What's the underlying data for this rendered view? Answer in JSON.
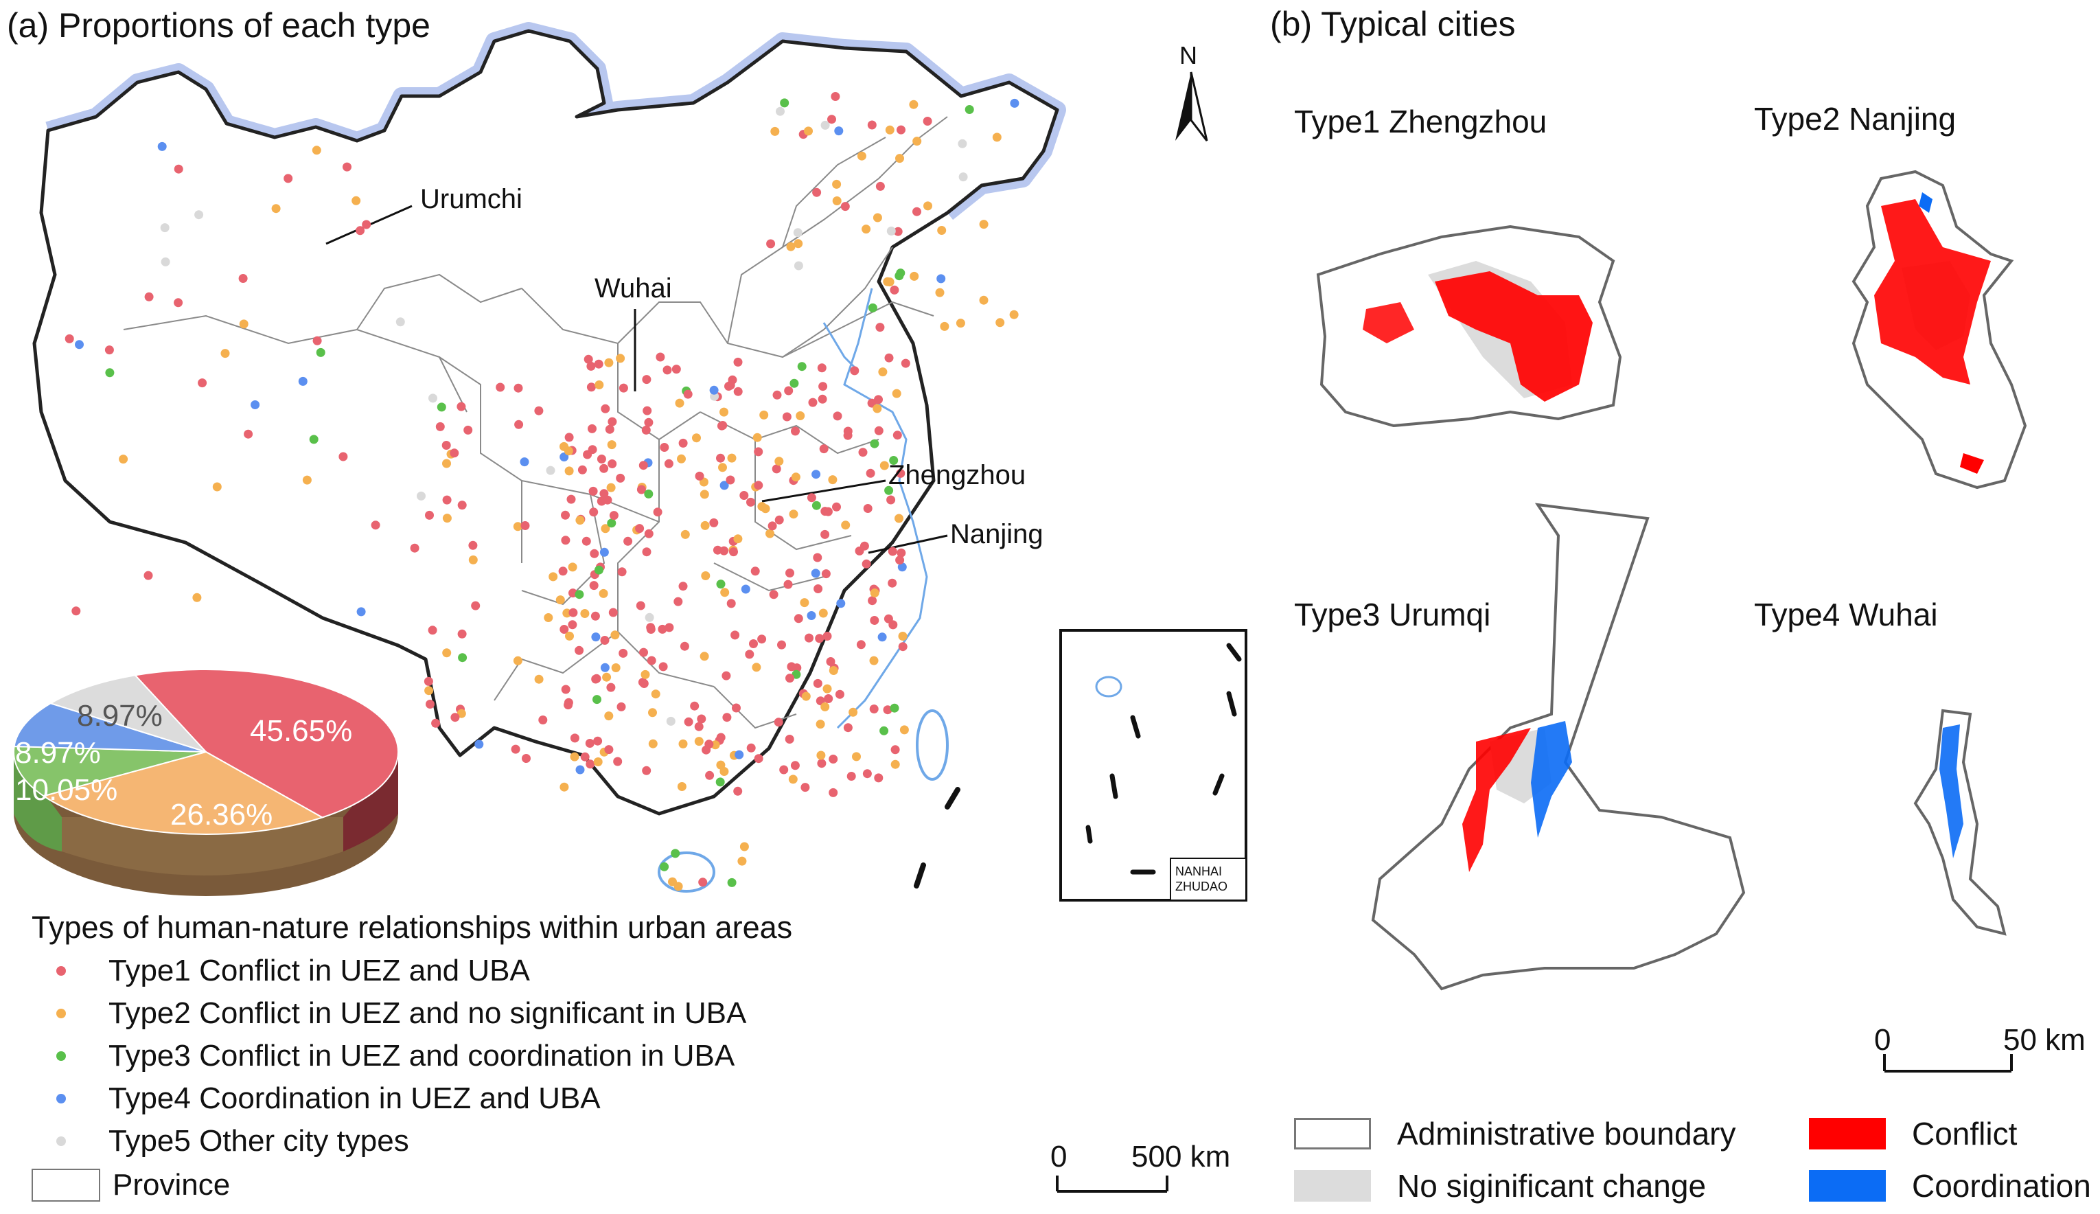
{
  "panel_a": {
    "title": "(a) Proportions of each type",
    "city_labels": {
      "urumchi": "Urumchi",
      "wuhai": "Wuhai",
      "zhengzhou": "Zhengzhou",
      "nanjing": "Nanjing"
    },
    "north": "N",
    "inset_label_1": "NANHAI",
    "inset_label_2": "ZHUDAO",
    "scale": {
      "zero": "0",
      "end": "500 km"
    },
    "pie": {
      "type": "pie",
      "slices": [
        {
          "label": "45.65%",
          "value": 45.65,
          "color": "#e8636f"
        },
        {
          "label": "26.36%",
          "value": 26.36,
          "color": "#f5b673"
        },
        {
          "label": "10.05%",
          "value": 10.05,
          "color": "#86c46a"
        },
        {
          "label": "8.97%",
          "value": 8.97,
          "color": "#6f9be9"
        },
        {
          "label": "8.97%",
          "value": 8.97,
          "color": "#dcdcdc"
        }
      ]
    },
    "legend": {
      "title": "Types of human-nature relationships within urban areas",
      "items": [
        {
          "label": "Type1 Conflict in UEZ and UBA",
          "color": "#e8636f"
        },
        {
          "label": "Type2 Conflict in UEZ and no significant in UBA",
          "color": "#f5b04f"
        },
        {
          "label": "Type3 Conflict in UEZ and coordination in UBA",
          "color": "#59c04a"
        },
        {
          "label": "Type4 Coordination in UEZ and UBA",
          "color": "#5b8ff0"
        },
        {
          "label": "Type5 Other city types",
          "color": "#d9d9d9"
        }
      ],
      "province": "Province"
    }
  },
  "panel_b": {
    "title": "(b) Typical cities",
    "cities": [
      {
        "title": "Type1 Zhengzhou"
      },
      {
        "title": "Type2 Nanjing"
      },
      {
        "title": "Type3 Urumqi"
      },
      {
        "title": "Type4 Wuhai"
      }
    ],
    "scale": {
      "zero": "0",
      "end": "50 km"
    },
    "key": {
      "admin": "Administrative boundary",
      "nochange": "No siginificant change",
      "conflict": "Conflict",
      "coordination": "Coordination"
    },
    "colors": {
      "conflict": "#ff0000",
      "coordination": "#0b6cf5",
      "nochange": "#dcdcdc"
    }
  }
}
